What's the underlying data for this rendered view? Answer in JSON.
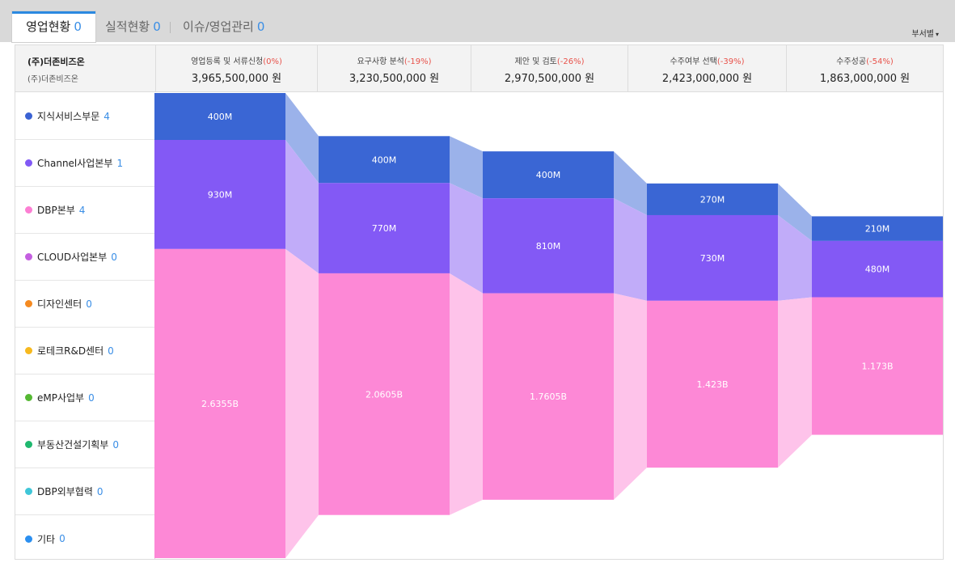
{
  "tabs": [
    {
      "label": "영업현황",
      "count": "0"
    },
    {
      "label": "실적현황",
      "count": "0"
    },
    {
      "label": "이슈/영업관리",
      "count": "0"
    }
  ],
  "dept_select": {
    "label": "부서별"
  },
  "company": {
    "name": "(주)더존비즈온",
    "sub": "(주)더존비즈온"
  },
  "stages": [
    {
      "label": "영업등록 및 서류신청",
      "pct": "(0%)",
      "amount": "3,965,500,000 원"
    },
    {
      "label": "요구사항 분석",
      "pct": "(-19%)",
      "amount": "3,230,500,000 원"
    },
    {
      "label": "제안 및 검토",
      "pct": "(-26%)",
      "amount": "2,970,500,000 원"
    },
    {
      "label": "수주여부 선택",
      "pct": "(-39%)",
      "amount": "2,423,000,000 원"
    },
    {
      "label": "수주성공",
      "pct": "(-54%)",
      "amount": "1,863,000,000 원"
    }
  ],
  "legend": [
    {
      "label": "지식서비스부문",
      "count": "4",
      "color": "#3a62d3"
    },
    {
      "label": "Channel사업본부",
      "count": "1",
      "color": "#8159f5"
    },
    {
      "label": "DBP본부",
      "count": "4",
      "color": "#fc7fd3"
    },
    {
      "label": "CLOUD사업본부",
      "count": "0",
      "color": "#c45fe0"
    },
    {
      "label": "디자인센터",
      "count": "0",
      "color": "#f58a20"
    },
    {
      "label": "로테크R&D센터",
      "count": "0",
      "color": "#f7b91e"
    },
    {
      "label": "eMP사업부",
      "count": "0",
      "color": "#55b833"
    },
    {
      "label": "부동산건설기획부",
      "count": "0",
      "color": "#1fb86f"
    },
    {
      "label": "DBP외부협력",
      "count": "0",
      "color": "#3fc6d8"
    },
    {
      "label": "기타",
      "count": "0",
      "color": "#2b8ff0"
    }
  ],
  "chart_data": {
    "type": "funnel-stacked-bar",
    "categories": [
      "영업등록 및 서류신청",
      "요구사항 분석",
      "제안 및 검토",
      "수주여부 선택",
      "수주성공"
    ],
    "series": [
      {
        "name": "지식서비스부문",
        "color": "#3a66d4",
        "link_color": "#9bb2ea",
        "values": [
          400,
          400,
          400,
          270,
          210
        ],
        "labels": [
          "400M",
          "400M",
          "400M",
          "270M",
          "210M"
        ]
      },
      {
        "name": "Channel사업본부",
        "color": "#8359f5",
        "link_color": "#c1acf9",
        "values": [
          930,
          770,
          810,
          730,
          480
        ],
        "labels": [
          "930M",
          "770M",
          "810M",
          "730M",
          "480M"
        ]
      },
      {
        "name": "DBP본부",
        "color": "#fd88d6",
        "link_color": "#fec3ea",
        "values": [
          2635.5,
          2060.5,
          1760.5,
          1423,
          1173
        ],
        "labels": [
          "2.6355B",
          "2.0605B",
          "1.7605B",
          "1.423B",
          "1.173B"
        ]
      }
    ],
    "unit": "M"
  }
}
